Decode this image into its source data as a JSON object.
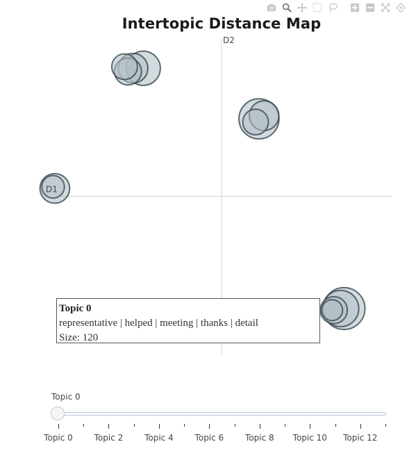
{
  "toolbar": {
    "buttons": [
      {
        "name": "camera-icon",
        "label": "Download plot as a png"
      },
      {
        "name": "zoom-icon",
        "label": "Zoom"
      },
      {
        "name": "pan-icon",
        "label": "Pan"
      },
      {
        "name": "box-select-icon",
        "label": "Box Select"
      },
      {
        "name": "lasso-select-icon",
        "label": "Lasso Select"
      },
      {
        "name": "zoom-in-icon",
        "label": "Zoom in"
      },
      {
        "name": "zoom-out-icon",
        "label": "Zoom out"
      },
      {
        "name": "autoscale-icon",
        "label": "Autoscale"
      },
      {
        "name": "reset-axes-icon",
        "label": "Reset axes"
      }
    ]
  },
  "chart_data": {
    "type": "scatter",
    "title": "Intertopic Distance Map",
    "xlabel": "D1",
    "ylabel": "D2",
    "xlim": [
      -10,
      10
    ],
    "ylim": [
      -10,
      10
    ],
    "grid": false,
    "colors": {
      "bubble_fill": "#b0bec5",
      "bubble_stroke": "#37474f",
      "axis_line": "#d3d3d3"
    },
    "points": [
      {
        "topic": 0,
        "x": 7.2,
        "y": -7.1,
        "size": 120
      },
      {
        "topic": 1,
        "x": 7.0,
        "y": -7.1,
        "size": 90
      },
      {
        "topic": 2,
        "x": -4.6,
        "y": 8.1,
        "size": 80
      },
      {
        "topic": 3,
        "x": -5.2,
        "y": 8.1,
        "size": 60
      },
      {
        "topic": 4,
        "x": -5.5,
        "y": 7.9,
        "size": 50
      },
      {
        "topic": 5,
        "x": -5.7,
        "y": 8.2,
        "size": 45
      },
      {
        "topic": 6,
        "x": 2.2,
        "y": 4.9,
        "size": 110
      },
      {
        "topic": 7,
        "x": 2.5,
        "y": 5.1,
        "size": 60
      },
      {
        "topic": 8,
        "x": 2.0,
        "y": 4.7,
        "size": 45
      },
      {
        "topic": 9,
        "x": -9.8,
        "y": 0.5,
        "size": 60
      },
      {
        "topic": 10,
        "x": -9.9,
        "y": 0.6,
        "size": 35
      },
      {
        "topic": 11,
        "x": 6.6,
        "y": -7.2,
        "size": 50
      },
      {
        "topic": 12,
        "x": 6.5,
        "y": -7.2,
        "size": 30
      }
    ]
  },
  "hover": {
    "title": "Topic 0",
    "words": "representative | helped | meeting | thanks | detail",
    "size": "Size: 120"
  },
  "slider": {
    "current_label": "Topic 0",
    "value": 0,
    "max": 13,
    "tick_labels": [
      "Topic 0",
      "Topic 2",
      "Topic 4",
      "Topic 6",
      "Topic 8",
      "Topic 10",
      "Topic 12"
    ]
  }
}
